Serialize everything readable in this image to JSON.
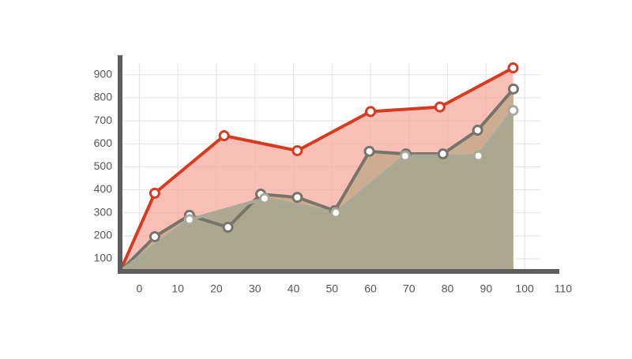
{
  "chart_data": {
    "type": "area",
    "xlim": [
      -5,
      109
    ],
    "ylim": [
      45,
      985
    ],
    "xticks": [
      0,
      10,
      20,
      30,
      40,
      50,
      60,
      70,
      80,
      90,
      100,
      110
    ],
    "yticks": [
      100,
      200,
      300,
      400,
      500,
      600,
      700,
      800,
      900
    ],
    "grid": true,
    "series": [
      {
        "color": "#d63b1f",
        "fill": "#f4a99c",
        "x": [
          -5,
          4,
          22,
          41,
          60,
          78,
          97
        ],
        "values": [
          45,
          385,
          635,
          570,
          740,
          760,
          930
        ]
      },
      {
        "color": "#77746a",
        "fill": "#c9ab8e",
        "x": [
          -5,
          4,
          13,
          23,
          31.5,
          41,
          50.7,
          59.7,
          69.2,
          78.8,
          87.8,
          97.1
        ],
        "values": [
          45,
          196,
          289,
          237,
          381,
          367,
          309,
          567,
          556,
          556,
          659,
          838
        ]
      },
      {
        "color": "#a8a996",
        "fill": "#a8a68e",
        "x": [
          -5,
          13,
          32.5,
          51,
          69,
          88,
          97
        ],
        "values": [
          45,
          270,
          362,
          300,
          547,
          547,
          745
        ]
      }
    ]
  }
}
